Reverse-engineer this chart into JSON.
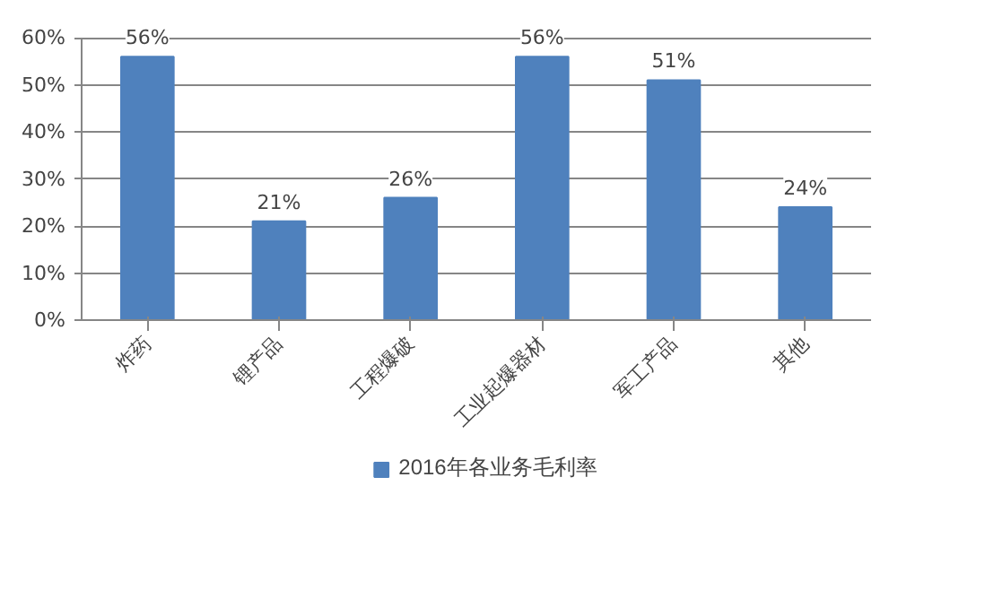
{
  "chart_data": {
    "type": "bar",
    "categories": [
      "炸药",
      "锂产品",
      "工程爆破",
      "工业起爆器材",
      "军工产品",
      "其他"
    ],
    "series": [
      {
        "name": "2016年各业务毛利率",
        "color": "#4f81bd",
        "values": [
          56,
          21,
          26,
          56,
          51,
          24
        ]
      }
    ],
    "value_labels": [
      "56%",
      "21%",
      "26%",
      "56%",
      "51%",
      "24%"
    ],
    "ylim": [
      0,
      60
    ],
    "yticks": [
      {
        "value": 0,
        "label": "0%"
      },
      {
        "value": 10,
        "label": "10%"
      },
      {
        "value": 20,
        "label": "20%"
      },
      {
        "value": 30,
        "label": "30%"
      },
      {
        "value": 40,
        "label": "40%"
      },
      {
        "value": 50,
        "label": "50%"
      },
      {
        "value": 60,
        "label": "60%"
      }
    ],
    "grid": "y",
    "legend": "bottom"
  }
}
